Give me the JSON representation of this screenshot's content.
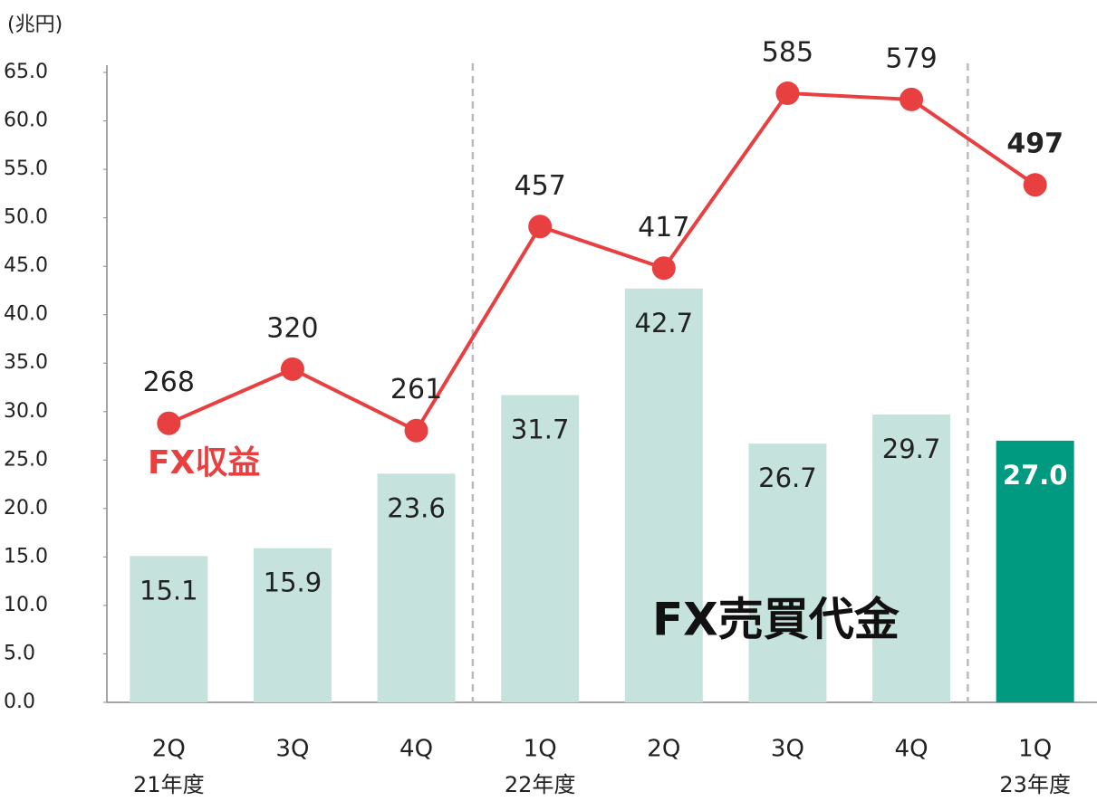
{
  "chart_data": {
    "type": "bar",
    "unit_label": "(兆円)",
    "categories": [
      "2Q",
      "3Q",
      "4Q",
      "1Q",
      "2Q",
      "3Q",
      "4Q",
      "1Q"
    ],
    "group_labels": [
      "21年度",
      null,
      null,
      "22年度",
      null,
      null,
      null,
      "23年度"
    ],
    "series": [
      {
        "name": "FX売買代金",
        "type": "bar",
        "values": [
          15.1,
          15.9,
          23.6,
          31.7,
          42.7,
          26.7,
          29.7,
          27.0
        ],
        "value_labels": [
          "15.1",
          "15.9",
          "23.6",
          "31.7",
          "42.7",
          "26.7",
          "29.7",
          "27.0"
        ],
        "colors": [
          "#c5e3dc",
          "#c5e3dc",
          "#c5e3dc",
          "#c5e3dc",
          "#c5e3dc",
          "#c5e3dc",
          "#c5e3dc",
          "#009a80"
        ]
      },
      {
        "name": "FX収益",
        "type": "line",
        "axis": "y2",
        "color": "#e84040",
        "values": [
          268,
          320,
          261,
          457,
          417,
          585,
          579,
          497
        ]
      }
    ],
    "ylim": [
      0,
      65
    ],
    "yticks": [
      {
        "value": 0,
        "label": "0.0"
      },
      {
        "value": 5,
        "label": "5.0"
      },
      {
        "value": 10,
        "label": "10.0"
      },
      {
        "value": 15,
        "label": "15.0"
      },
      {
        "value": 20,
        "label": "20.0"
      },
      {
        "value": 25,
        "label": "25.0"
      },
      {
        "value": 30,
        "label": "30.0"
      },
      {
        "value": 35,
        "label": "35.0"
      },
      {
        "value": 40,
        "label": "40.0"
      },
      {
        "value": 45,
        "label": "45.0"
      },
      {
        "value": 50,
        "label": "50.0"
      },
      {
        "value": 55,
        "label": "55.0"
      },
      {
        "value": 60,
        "label": "60.0"
      },
      {
        "value": 65,
        "label": "65.0"
      }
    ],
    "y2lim": [
      0,
      605
    ]
  }
}
